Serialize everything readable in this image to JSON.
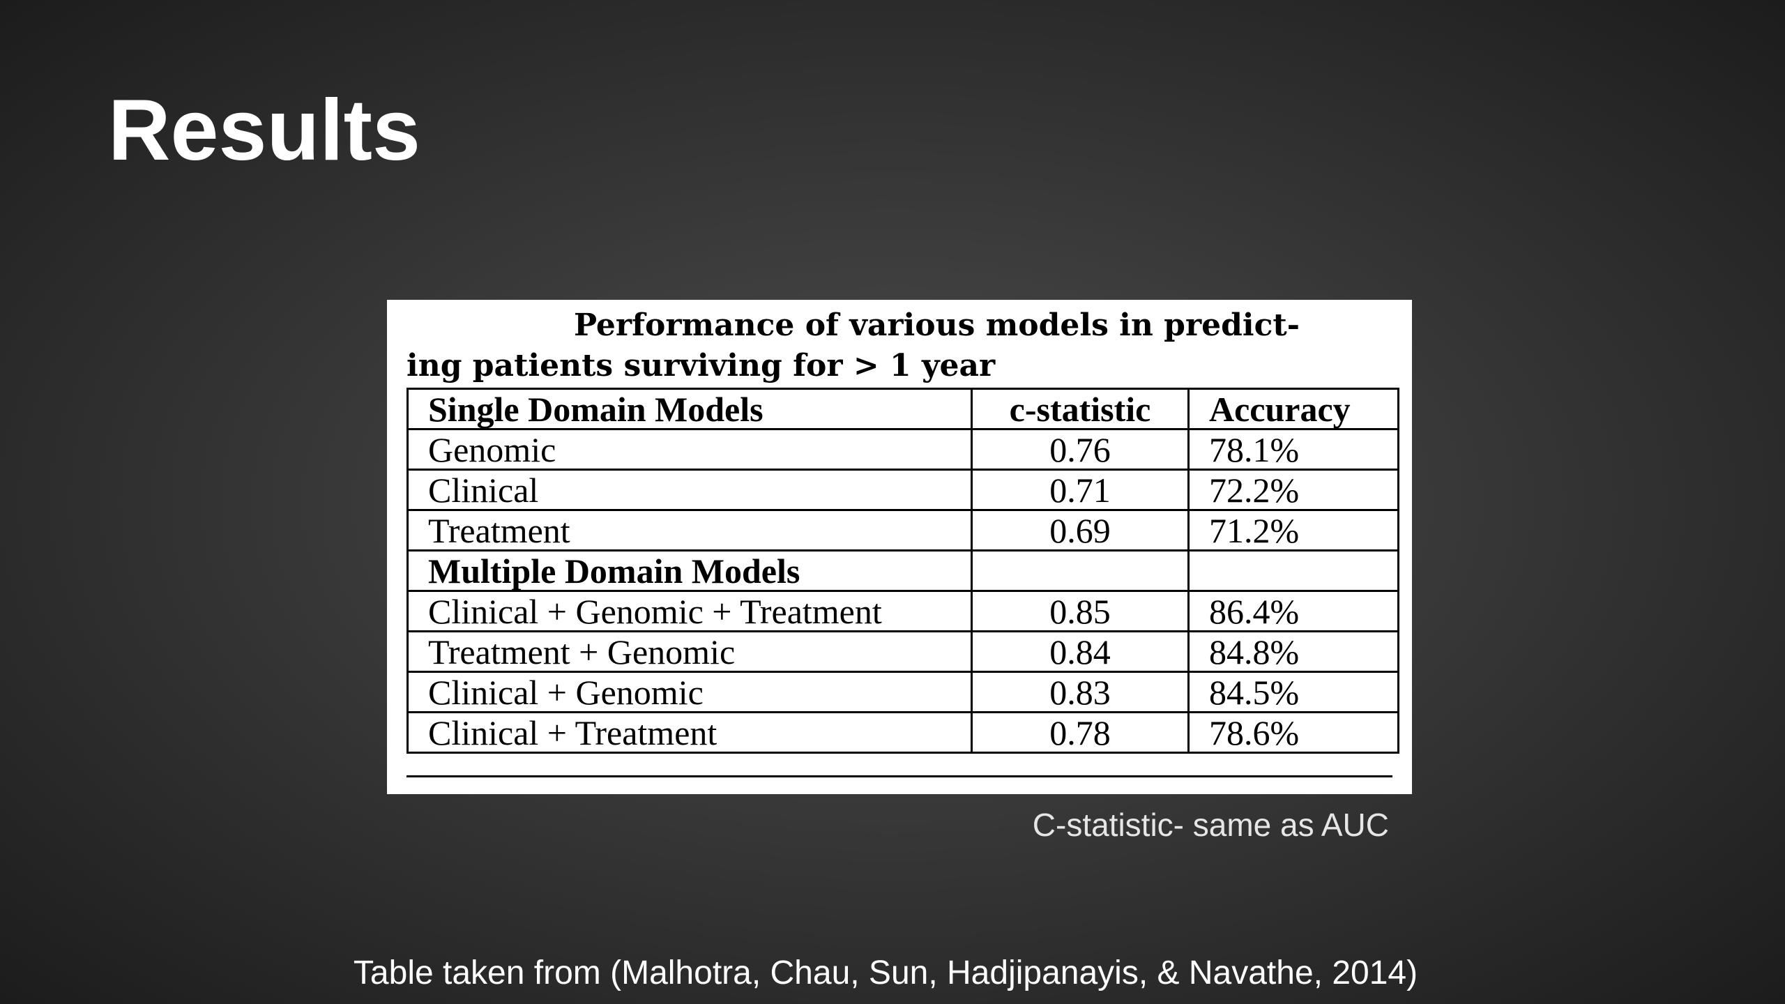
{
  "header": {
    "title": "Results"
  },
  "table": {
    "caption": [
      "Performance of various models in predict-",
      "ing patients surviving for > 1 year"
    ],
    "sections": [
      {
        "header": [
          "Single Domain Models",
          "c-statistic",
          "Accuracy"
        ],
        "rows": [
          [
            "Genomic",
            "0.76",
            "78.1%"
          ],
          [
            "Clinical",
            "0.71",
            "72.2%"
          ],
          [
            "Treatment",
            "0.69",
            "71.2%"
          ]
        ]
      },
      {
        "header": [
          "Multiple Domain Models"
        ],
        "rows": [
          [
            "Clinical + Genomic + Treatment",
            "0.85",
            "86.4%"
          ],
          [
            "Treatment + Genomic",
            "0.84",
            "84.8%"
          ],
          [
            "Clinical + Genomic",
            "0.83",
            "84.5%"
          ],
          [
            "Clinical + Treatment",
            "0.78",
            "78.6%"
          ]
        ]
      }
    ]
  },
  "note": "C-statistic- same as AUC",
  "footer": "Table taken from (Malhotra, Chau, Sun, Hadjipanayis, & Navathe, 2014)"
}
